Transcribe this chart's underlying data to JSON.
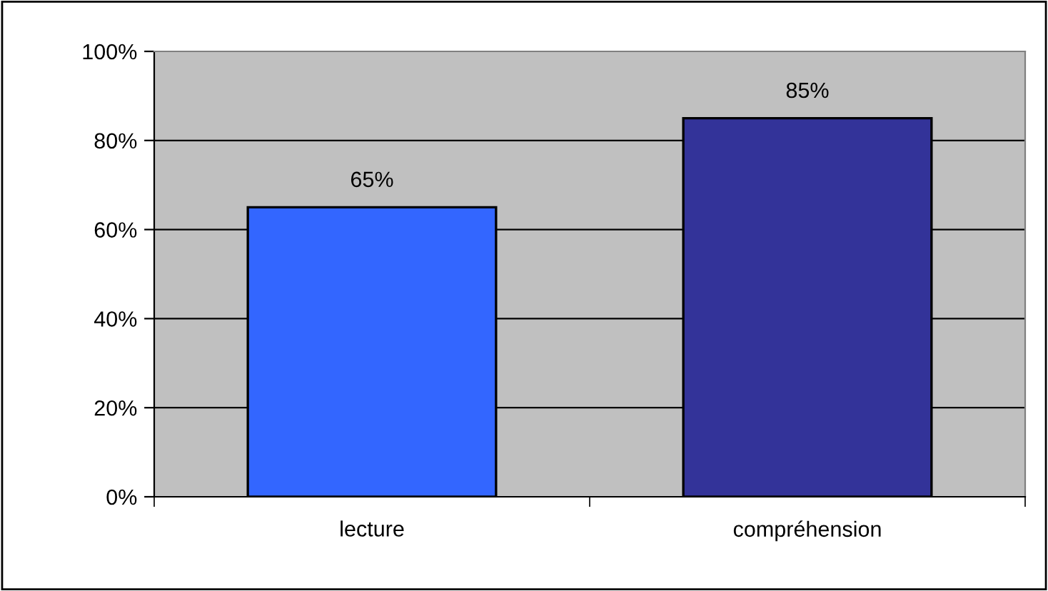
{
  "chart_data": {
    "type": "bar",
    "categories": [
      "lecture",
      "compréhension"
    ],
    "values": [
      65,
      85
    ],
    "colors": [
      "#3366ff",
      "#333399"
    ],
    "value_labels": [
      "65%",
      "85%"
    ],
    "ylim": [
      0,
      100
    ],
    "yticks": [
      {
        "value": 0,
        "label": "0%"
      },
      {
        "value": 20,
        "label": "20%"
      },
      {
        "value": 40,
        "label": "40%"
      },
      {
        "value": 60,
        "label": "60%"
      },
      {
        "value": 80,
        "label": "80%"
      },
      {
        "value": 100,
        "label": "100%"
      }
    ],
    "grid": "y",
    "legend": false
  }
}
